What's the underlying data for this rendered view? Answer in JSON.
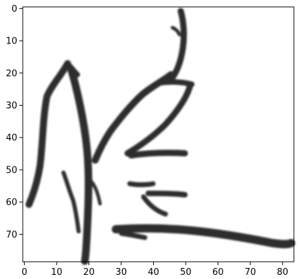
{
  "image": {
    "content": "grayscale bitmap of handwritten Chinese character",
    "colormap": "gray_r",
    "x_range": [
      0,
      83
    ],
    "y_range": [
      0,
      78
    ]
  },
  "axes": {
    "x_ticks": [
      "0",
      "10",
      "20",
      "30",
      "40",
      "50",
      "60",
      "70",
      "80"
    ],
    "y_ticks": [
      "0",
      "10",
      "20",
      "30",
      "40",
      "50",
      "60",
      "70"
    ]
  },
  "colors": {
    "ink": "#1a1a1a",
    "background": "#ffffff",
    "frame": "#000000"
  }
}
